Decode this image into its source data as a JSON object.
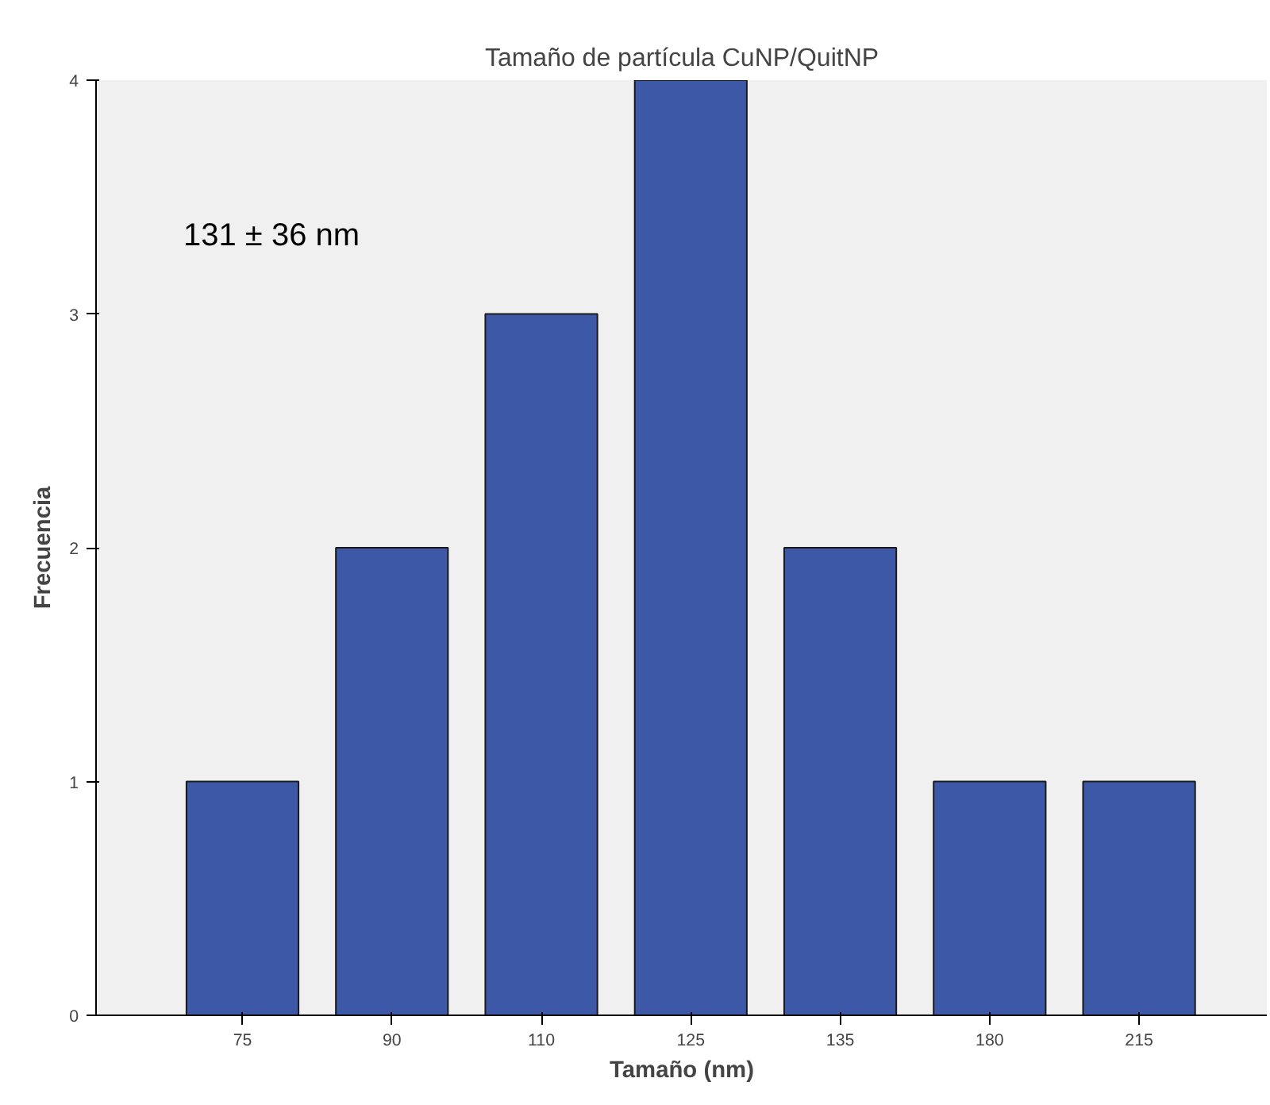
{
  "chart_data": {
    "type": "bar",
    "title": "Tamaño de partícula CuNP/QuitNP",
    "xlabel": "Tamaño (nm)",
    "ylabel": "Frecuencia",
    "categories": [
      "75",
      "90",
      "110",
      "125",
      "135",
      "180",
      "215"
    ],
    "values": [
      1,
      2,
      3,
      4,
      2,
      1,
      1
    ],
    "color": "#3e58a8",
    "ylim": [
      0,
      4
    ],
    "yticks": [
      0,
      1,
      2,
      3,
      4
    ],
    "grid": false,
    "annotations": [
      "131 ± 36 nm"
    ]
  }
}
